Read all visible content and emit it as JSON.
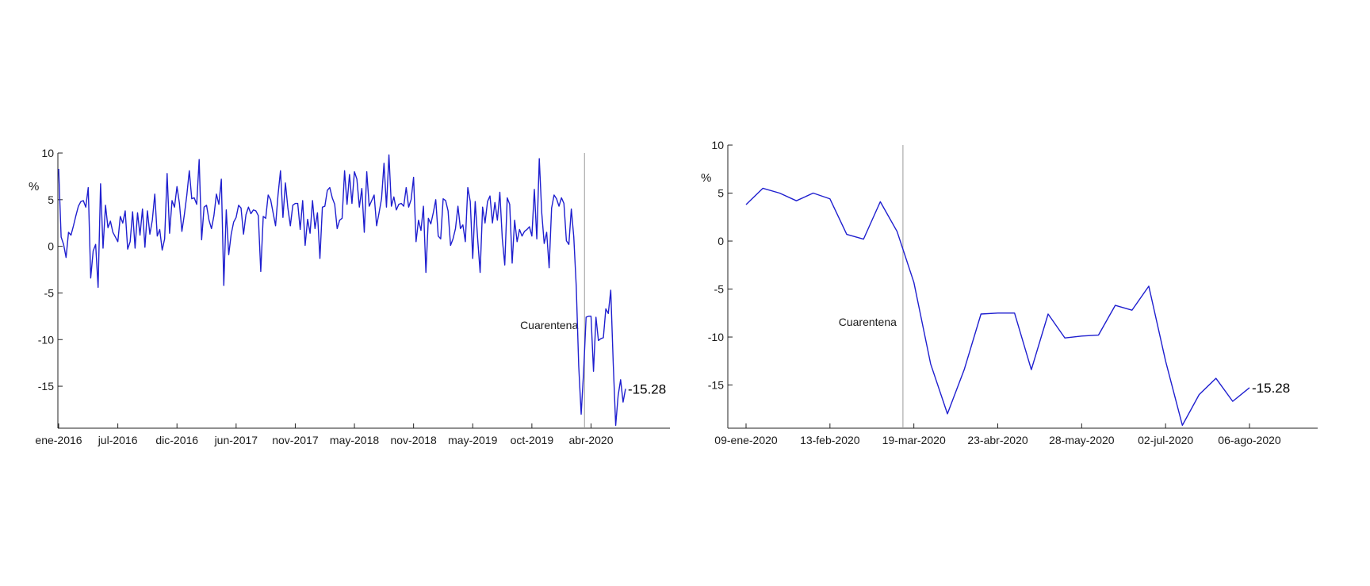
{
  "chart_data": [
    {
      "type": "line",
      "ylabel": "%",
      "ylim": [
        -19.5,
        10
      ],
      "y_ticks": [
        10,
        5,
        0,
        -5,
        -10,
        -15
      ],
      "x_ticks": [
        "ene-2016",
        "jul-2016",
        "dic-2016",
        "jun-2017",
        "nov-2017",
        "may-2018",
        "nov-2018",
        "may-2019",
        "oct-2019",
        "abr-2020"
      ],
      "x_tick_index": [
        0,
        24,
        48,
        72,
        96,
        120,
        144,
        168,
        192,
        216
      ],
      "annotation": {
        "text": "Cuarentena",
        "x_index": 213
      },
      "last_label": "-15.28",
      "color": "#1f1fcf",
      "grid": false,
      "series": [
        {
          "values": [
            8.3,
            1.0,
            0.2,
            -1.2,
            1.5,
            1.2,
            2.2,
            3.3,
            4.3,
            4.8,
            4.9,
            4.2,
            6.3,
            -3.4,
            -0.5,
            0.2,
            -4.4,
            6.7,
            -0.2,
            4.4,
            2.0,
            2.7,
            1.5,
            1.0,
            0.5,
            3.2,
            2.5,
            3.8,
            -0.3,
            0.5,
            3.7,
            -0.2,
            3.6,
            1.2,
            4.0,
            -0.1,
            3.8,
            1.3,
            2.8,
            5.6,
            1.1,
            1.8,
            -0.4,
            0.8,
            7.8,
            1.4,
            4.9,
            4.2,
            6.4,
            4.6,
            1.6,
            3.4,
            5.5,
            8.1,
            5.1,
            5.2,
            4.5,
            9.3,
            0.7,
            4.2,
            4.4,
            2.8,
            1.9,
            3.3,
            5.6,
            4.5,
            7.2,
            -4.2,
            3.9,
            -0.9,
            1.3,
            2.6,
            3.1,
            4.4,
            4.1,
            1.3,
            3.4,
            4.2,
            3.5,
            3.9,
            3.8,
            3.3,
            -2.7,
            3.2,
            3.0,
            5.5,
            5.0,
            3.6,
            2.2,
            5.5,
            8.1,
            3.1,
            6.8,
            4.1,
            2.2,
            4.4,
            4.6,
            4.6,
            1.8,
            4.9,
            0.1,
            2.9,
            1.4,
            4.9,
            1.9,
            3.6,
            -1.3,
            4.2,
            4.3,
            6.0,
            6.3,
            5.2,
            4.5,
            1.9,
            2.8,
            3.0,
            8.1,
            4.5,
            7.7,
            4.6,
            8.0,
            7.2,
            4.2,
            6.2,
            1.5,
            8.0,
            4.3,
            4.9,
            5.5,
            2.2,
            3.6,
            5.1,
            8.9,
            4.2,
            9.8,
            4.3,
            5.3,
            3.9,
            4.5,
            4.6,
            4.3,
            6.3,
            4.2,
            5.0,
            7.4,
            0.5,
            2.8,
            1.7,
            4.3,
            -2.8,
            3.0,
            2.4,
            3.6,
            5.0,
            1.1,
            0.8,
            5.1,
            4.9,
            3.8,
            0.1,
            0.8,
            1.9,
            4.3,
            1.9,
            2.3,
            0.5,
            6.3,
            4.8,
            -1.3,
            4.8,
            0.8,
            -2.8,
            4.2,
            2.5,
            4.8,
            5.4,
            2.5,
            4.7,
            2.8,
            5.8,
            0.8,
            -2.0,
            5.2,
            4.5,
            -1.8,
            2.8,
            0.5,
            1.8,
            1.1,
            1.6,
            1.8,
            2.1,
            1.1,
            6.1,
            0.8,
            9.4,
            3.6,
            0.3,
            1.5,
            -2.3,
            4.1,
            5.5,
            5.1,
            4.3,
            5.2,
            4.6,
            0.6,
            0.2,
            4.0,
            1.0,
            -4.3,
            -12.8,
            -18.0,
            -13.4,
            -7.6,
            -7.5,
            -7.5,
            -13.4,
            -7.6,
            -10.1,
            -9.9,
            -9.8,
            -6.7,
            -7.2,
            -4.7,
            -12.5,
            -19.2,
            -16.0,
            -14.3,
            -16.7,
            -15.28
          ]
        }
      ]
    },
    {
      "type": "line",
      "ylabel": "%",
      "ylim": [
        -19.5,
        10
      ],
      "y_ticks": [
        10,
        5,
        0,
        -5,
        -10,
        -15
      ],
      "x_ticks": [
        "09-ene-2020",
        "13-feb-2020",
        "19-mar-2020",
        "23-abr-2020",
        "28-may-2020",
        "02-jul-2020",
        "06-ago-2020"
      ],
      "x_tick_index": [
        0,
        5,
        10,
        15,
        20,
        25,
        30
      ],
      "annotation": {
        "text": "Cuarentena",
        "x_index": 9
      },
      "last_label": "-15.28",
      "color": "#1f1fcf",
      "grid": false,
      "series": [
        {
          "values": [
            3.8,
            5.5,
            5.0,
            4.2,
            5.0,
            4.4,
            0.7,
            0.2,
            4.1,
            1.0,
            -4.3,
            -12.8,
            -18.0,
            -13.4,
            -7.6,
            -7.5,
            -7.5,
            -13.4,
            -7.6,
            -10.1,
            -9.9,
            -9.8,
            -6.7,
            -7.2,
            -4.7,
            -12.5,
            -19.2,
            -16.0,
            -14.3,
            -16.7,
            -15.28
          ]
        }
      ]
    }
  ]
}
